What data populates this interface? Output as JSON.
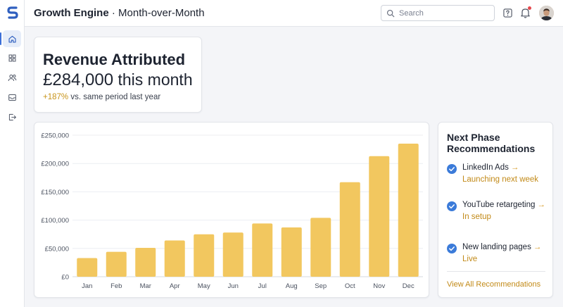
{
  "app": {
    "title": "Growth Engine",
    "separator": " · ",
    "view": "Month-over-Month"
  },
  "search": {
    "placeholder": "Search",
    "value": ""
  },
  "icons": {
    "logo": "logo-icon",
    "nav": [
      "home-icon",
      "grid-icon",
      "users-icon",
      "inbox-icon",
      "logout-icon"
    ],
    "topbar": [
      "search-icon",
      "help-icon",
      "bell-icon"
    ]
  },
  "colors": {
    "accent": "#3b6fd8",
    "bar": "#f2c75f",
    "positive": "#c8941a",
    "notification": "#e5484d"
  },
  "kpi": {
    "title": "Revenue Attributed",
    "value": "£284,000",
    "value_suffix": " this month",
    "change": "+187%",
    "change_suffix": " vs. same period last year"
  },
  "chart_data": {
    "type": "bar",
    "categories": [
      "Jan",
      "Feb",
      "Mar",
      "Apr",
      "May",
      "Jun",
      "Jul",
      "Aug",
      "Sep",
      "Oct",
      "Nov",
      "Dec"
    ],
    "values": [
      33000,
      44000,
      51000,
      64000,
      75000,
      78000,
      94000,
      87000,
      104000,
      167000,
      213000,
      235000
    ],
    "ylim": [
      0,
      250000
    ],
    "yticks": [
      0,
      50000,
      100000,
      150000,
      200000,
      250000
    ],
    "ytick_labels": [
      "£0",
      "£50,000",
      "£100,000",
      "£150,000",
      "£200,000",
      "£250,000"
    ],
    "grid": true,
    "title": "",
    "xlabel": "",
    "ylabel": ""
  },
  "recommendations": {
    "title": "Next Phase Recommendations",
    "items": [
      {
        "name": "LinkedIn Ads",
        "status": "Launching next week"
      },
      {
        "name": "YouTube retargeting",
        "status": "In setup"
      },
      {
        "name": "New landing pages",
        "status": "Live"
      }
    ],
    "link": "View All Recommendations"
  }
}
